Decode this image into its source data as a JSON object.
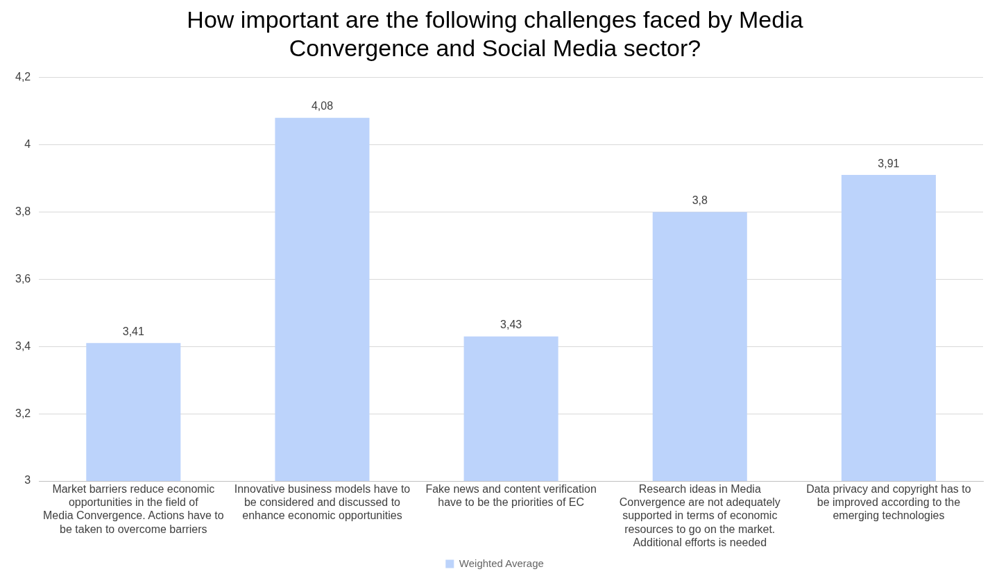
{
  "chart_data": {
    "type": "bar",
    "title": "How important are the following challenges faced by Media Convergence and Social Media sector?",
    "categories": [
      "Market barriers reduce economic opportunities in the field of Media Convergence. Actions have to be taken to overcome barriers",
      "Innovative business models have to be considered and discussed to enhance economic opportunities",
      "Fake news and content verification have to be the priorities of EC",
      "Research ideas in Media Convergence are not adequately supported in terms of economic resources to go on the market. Additional efforts is needed",
      "Data privacy and copyright has to be improved according to the emerging technologies"
    ],
    "series": [
      {
        "name": "Weighted Average",
        "color": "#bcd3fb",
        "values": [
          3.41,
          4.08,
          3.43,
          3.8,
          3.91
        ],
        "value_labels": [
          "3,41",
          "4,08",
          "3,43",
          "3,8",
          "3,91"
        ]
      }
    ],
    "ylim": [
      3,
      4.2
    ],
    "yticks": [
      {
        "value": 3,
        "label": "3"
      },
      {
        "value": 3.2,
        "label": "3,2"
      },
      {
        "value": 3.4,
        "label": "3,4"
      },
      {
        "value": 3.6,
        "label": "3,6"
      },
      {
        "value": 3.8,
        "label": "3,8"
      },
      {
        "value": 4,
        "label": "4"
      },
      {
        "value": 4.2,
        "label": "4,2"
      }
    ],
    "grid": "y",
    "legend": "bottom"
  }
}
